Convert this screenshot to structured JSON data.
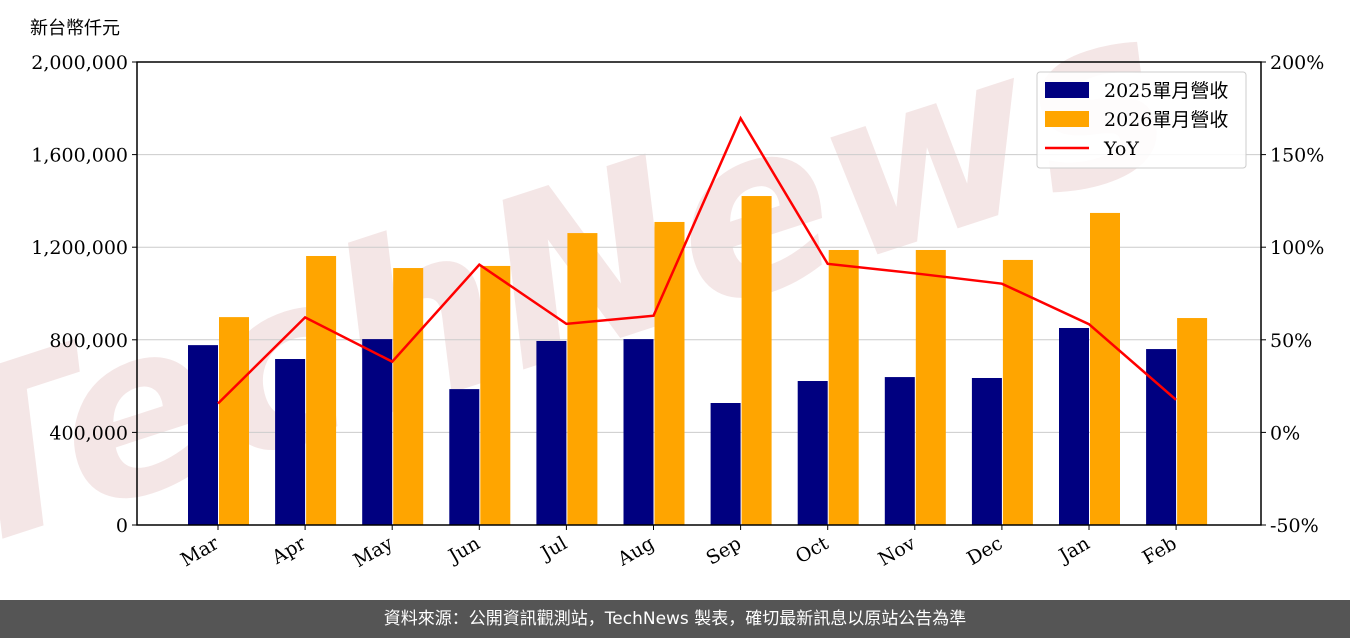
{
  "chart_data": {
    "type": "bar+line",
    "ylabel": "新台幣仟元",
    "categories": [
      "Mar",
      "Apr",
      "May",
      "Jun",
      "Jul",
      "Aug",
      "Sep",
      "Oct",
      "Nov",
      "Dec",
      "Jan",
      "Feb"
    ],
    "series": [
      {
        "name": "2025單月營收",
        "type": "bar",
        "color": "#000080",
        "values": [
          777000,
          717000,
          803000,
          587000,
          795000,
          803000,
          527000,
          622000,
          639000,
          635000,
          851000,
          760000
        ]
      },
      {
        "name": "2026單月營收",
        "type": "bar",
        "color": "#FFA500",
        "values": [
          898000,
          1162000,
          1110000,
          1119000,
          1261000,
          1309000,
          1421000,
          1188000,
          1188000,
          1145000,
          1348000,
          894000
        ]
      },
      {
        "name": "YoY",
        "type": "line",
        "axis": "right",
        "color": "#FF0000",
        "values": [
          15.6,
          62.1,
          38.2,
          90.6,
          58.6,
          63.0,
          169.6,
          91.0,
          85.9,
          80.3,
          58.4,
          17.6
        ]
      }
    ],
    "ylim": [
      0,
      2000000
    ],
    "yticks": [
      "0",
      "400,000",
      "800,000",
      "1,200,000",
      "1,600,000",
      "2,000,000"
    ],
    "y2lim": [
      -50,
      200
    ],
    "y2ticks": [
      "-50%",
      "0%",
      "50%",
      "100%",
      "150%",
      "200%"
    ],
    "grid": "horizontal",
    "legend": "top-right",
    "watermark": "TechNews"
  },
  "footer": "資料來源：公開資訊觀測站，TechNews 製表，確切最新訊息以原站公告為準"
}
